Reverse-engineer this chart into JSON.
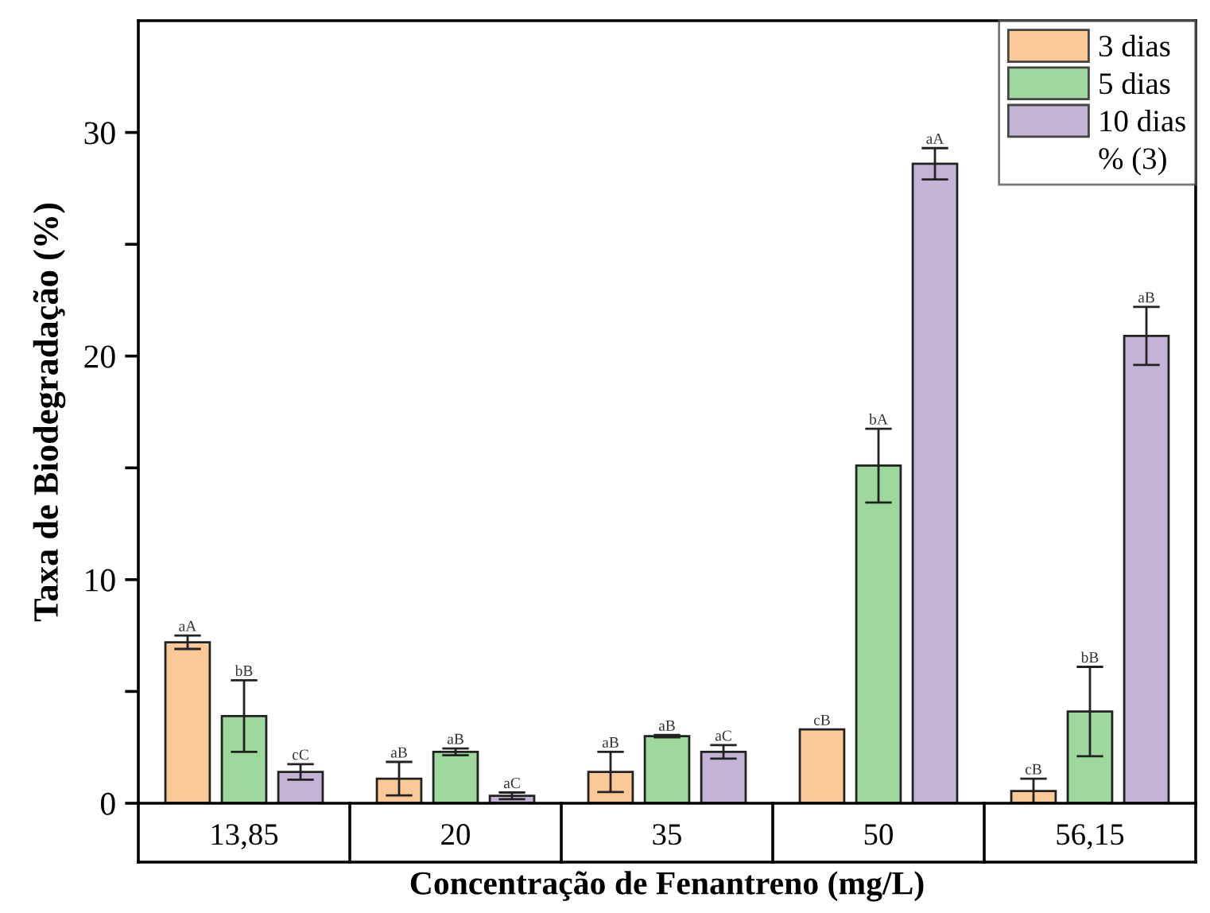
{
  "chart_data": {
    "type": "bar",
    "xlabel": "Concentração de Fenantreno (mg/L)",
    "ylabel": "Taxa de Biodegradação (%)",
    "categories": [
      "13,85",
      "20",
      "35",
      "50",
      "56,15"
    ],
    "series": [
      {
        "name": "3 dias",
        "color": "#fbc997",
        "values": [
          7.2,
          1.1,
          1.4,
          3.3,
          0.55
        ],
        "errors": [
          0.3,
          0.75,
          0.9,
          null,
          0.55
        ],
        "value_labels": [
          "aA",
          "aB",
          "aB",
          "cB",
          "cB"
        ]
      },
      {
        "name": "5 dias",
        "color": "#9fd89d",
        "values": [
          3.9,
          2.3,
          3.0,
          15.1,
          4.1
        ],
        "errors": [
          1.6,
          0.15,
          0.05,
          1.65,
          2.0
        ],
        "value_labels": [
          "bB",
          "aB",
          "aB",
          "bA",
          "bB"
        ]
      },
      {
        "name": "10 dias",
        "color": "#c3b3d7",
        "values": [
          1.4,
          0.33,
          2.3,
          28.6,
          20.9
        ],
        "errors": [
          0.35,
          0.15,
          0.3,
          0.7,
          1.3
        ],
        "value_labels": [
          "cC",
          "aC",
          "aC",
          "aA",
          "aB"
        ]
      }
    ],
    "ylim": [
      0,
      35
    ],
    "yticks": [
      0,
      {
        "value": 5,
        "label": null
      },
      10,
      {
        "value": 15,
        "label": null
      },
      20,
      {
        "value": 25,
        "label": null
      },
      30
    ],
    "legend": "top right",
    "grid": false,
    "annotations": [
      "% (3)"
    ]
  }
}
